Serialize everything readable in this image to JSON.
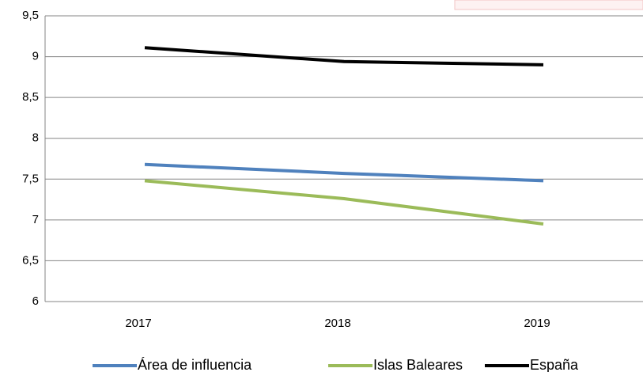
{
  "chart_data": {
    "type": "line",
    "categories": [
      "2017",
      "2018",
      "2019"
    ],
    "series": [
      {
        "name": "Área de influencia",
        "color": "#4f81bd",
        "values": [
          7.68,
          7.57,
          7.48
        ]
      },
      {
        "name": "Islas Baleares",
        "color": "#9bbb59",
        "values": [
          7.48,
          7.26,
          6.95
        ]
      },
      {
        "name": "España",
        "color": "#000000",
        "values": [
          9.11,
          8.94,
          8.9
        ]
      }
    ],
    "ylim": [
      6,
      9.5
    ],
    "yticks": [
      6,
      {
        "value": 6.5,
        "label": "6,5"
      },
      7,
      {
        "value": 7.5,
        "label": "7,5"
      },
      8,
      {
        "value": 8.5,
        "label": "8,5"
      },
      9,
      {
        "value": 9.5,
        "label": "9,5"
      }
    ],
    "grid": true,
    "legend": "bottom"
  }
}
